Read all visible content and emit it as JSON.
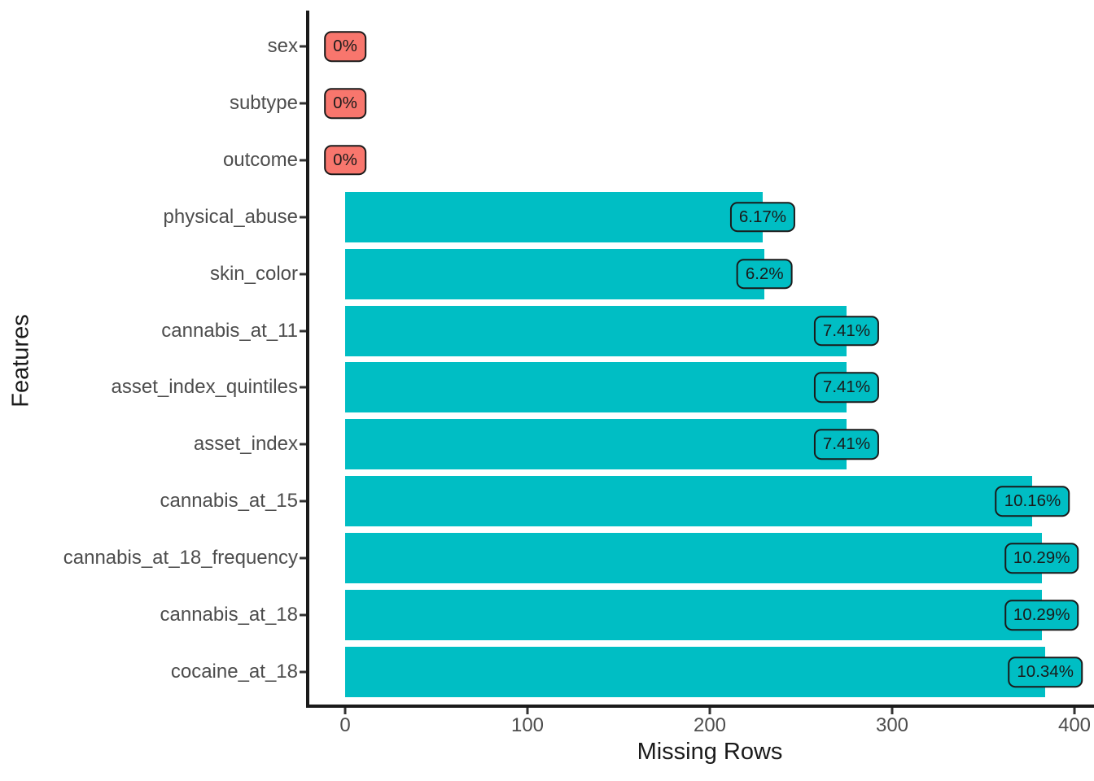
{
  "chart_data": {
    "type": "bar",
    "orientation": "horizontal",
    "title": "",
    "xlabel": "Missing Rows",
    "ylabel": "Features",
    "xlim": [
      0,
      400
    ],
    "x_ticks": [
      0,
      100,
      200,
      300,
      400
    ],
    "grid": false,
    "legend": "none",
    "categories": [
      "sex",
      "subtype",
      "outcome",
      "physical_abuse",
      "skin_color",
      "cannabis_at_11",
      "asset_index_quintiles",
      "asset_index",
      "cannabis_at_15",
      "cannabis_at_18_frequency",
      "cannabis_at_18",
      "cocaine_at_18"
    ],
    "values": [
      0,
      0,
      0,
      229,
      230,
      275,
      275,
      275,
      377,
      382,
      382,
      384
    ],
    "percent_labels": [
      "0%",
      "0%",
      "0%",
      "6.17%",
      "6.2%",
      "7.41%",
      "7.41%",
      "7.41%",
      "10.16%",
      "10.29%",
      "10.29%",
      "10.34%"
    ],
    "colors": {
      "zero_bar": "#F8766D",
      "nonzero_bar": "#00BEC4",
      "label_text": "#1a1a1a",
      "axis_text": "#4d4d4d",
      "axis_line": "#1a1a1a",
      "background": "#ffffff"
    }
  }
}
